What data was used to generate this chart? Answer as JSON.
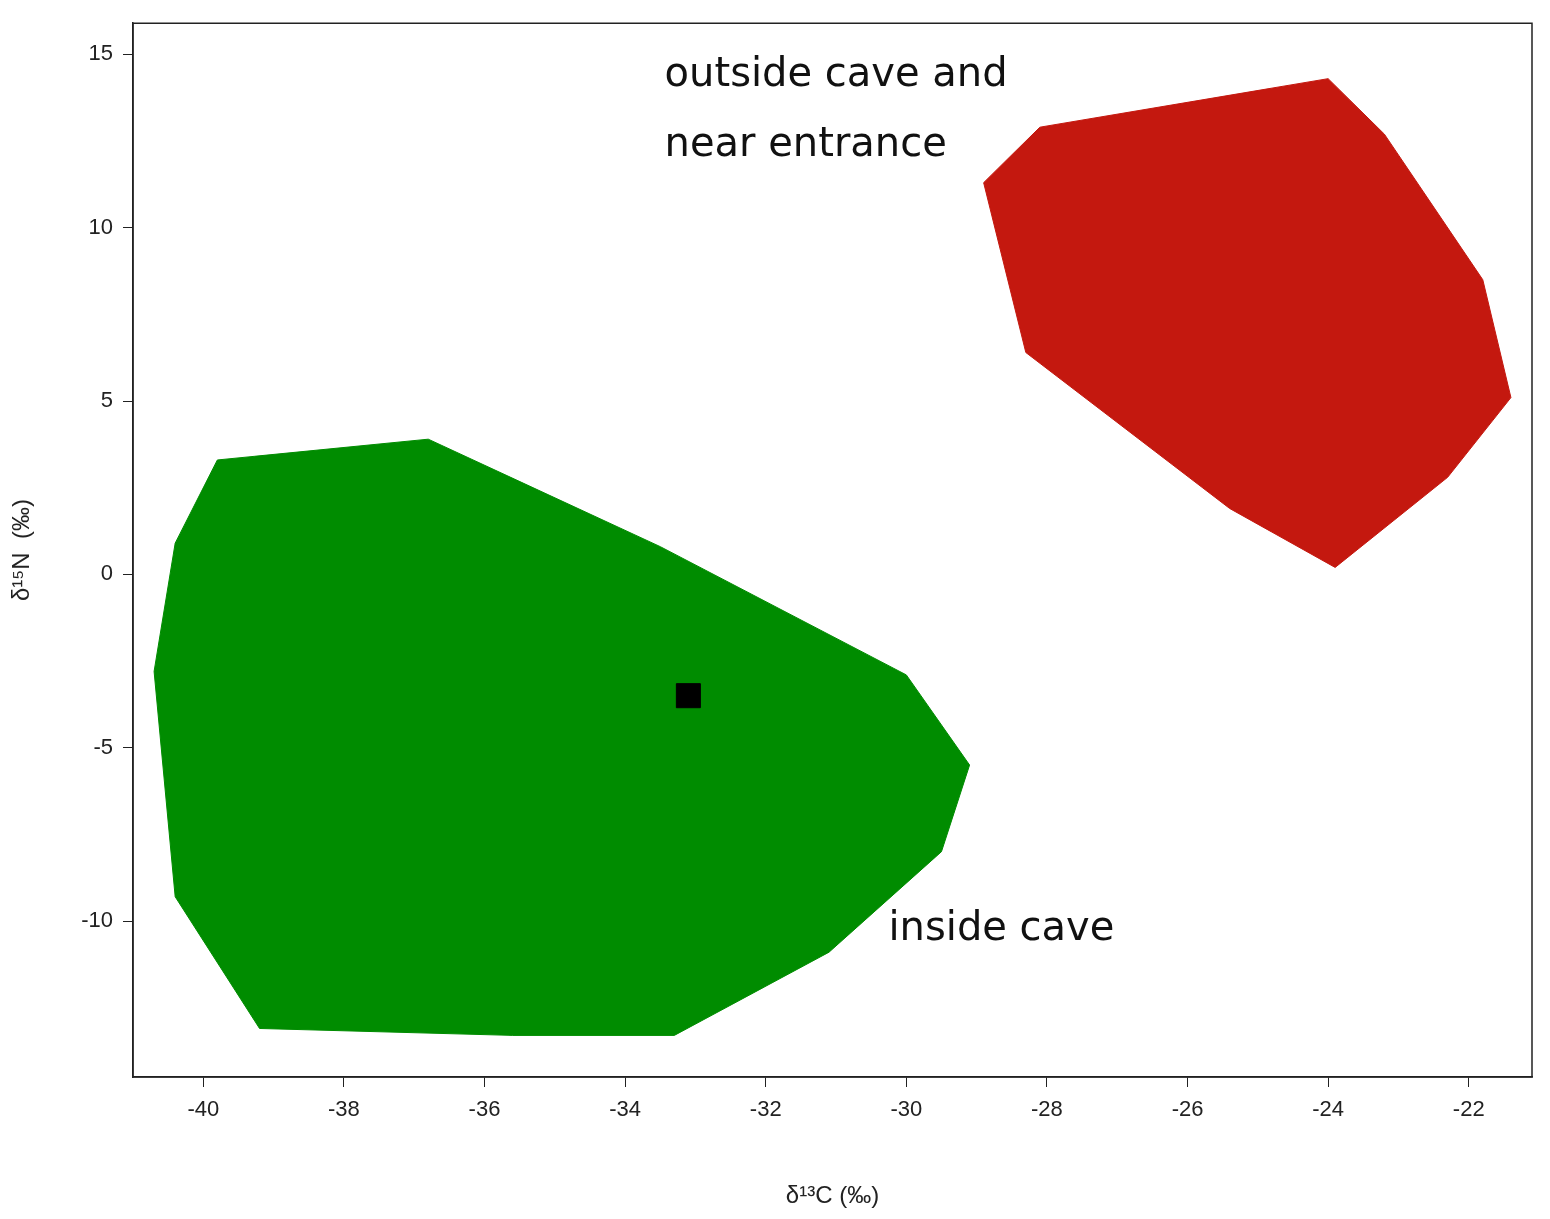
{
  "chart_data": {
    "type": "area",
    "xlabel": "δ¹³C (‰)",
    "ylabel": "δ¹⁵N  (‰)",
    "xlim": [
      -41.0,
      -21.1
    ],
    "ylim": [
      -14.5,
      15.9
    ],
    "xticks": [
      -40,
      -38,
      -36,
      -34,
      -32,
      -30,
      -28,
      -26,
      -24,
      -22
    ],
    "yticks": [
      -10,
      -5,
      0,
      5,
      10,
      15
    ],
    "grid": false,
    "legend": false,
    "series": [
      {
        "color": "#008c00",
        "x": [
          -39.8,
          -36.8,
          -33.5,
          -30.0,
          -29.1,
          -29.5,
          -31.1,
          -33.3,
          -35.6,
          -39.2,
          -40.4,
          -40.7,
          -40.4,
          -39.8
        ],
        "values": [
          3.3,
          3.9,
          0.8,
          -2.9,
          -5.5,
          -8.0,
          -10.9,
          -13.3,
          -13.3,
          -13.1,
          -9.3,
          -2.8,
          0.9,
          3.3
        ]
      },
      {
        "color": "#c4180f",
        "x": [
          -28.9,
          -28.1,
          -24.0,
          -23.2,
          -21.8,
          -21.4,
          -22.3,
          -23.9,
          -25.4,
          -28.3,
          -28.9
        ],
        "values": [
          11.3,
          12.9,
          14.3,
          12.7,
          8.5,
          5.1,
          2.8,
          0.2,
          1.9,
          6.4,
          11.3
        ]
      },
      {
        "type": "scatter",
        "marker": "square",
        "color": "#000000",
        "x": [
          -33.1
        ],
        "values": [
          -3.5
        ]
      }
    ],
    "annotations": [
      "outside cave and\nnear entrance",
      "inside cave"
    ]
  }
}
